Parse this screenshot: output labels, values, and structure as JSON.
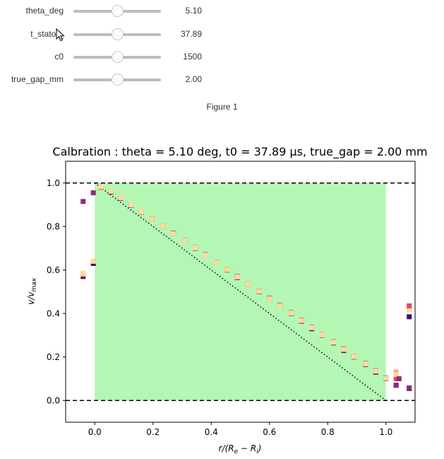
{
  "sliders": [
    {
      "id": "theta",
      "label": "theta_deg",
      "value_text": "5.10",
      "fraction": 0.5
    },
    {
      "id": "tstator",
      "label": "t_stator_",
      "value_text": "37.89",
      "fraction": 0.5
    },
    {
      "id": "c0",
      "label": "c0",
      "value_text": "1500",
      "fraction": 0.5
    },
    {
      "id": "truegap",
      "label": "true_gap_mm",
      "value_text": "2.00",
      "fraction": 0.5
    }
  ],
  "figure_label": "Figure 1",
  "chart_data": {
    "type": "scatter",
    "title": "Calbration : theta = 5.10 deg, t0 = 37.89 µs, true_gap = 2.00 mm",
    "xlabel": "r/(R_e − R_i)",
    "ylabel": "v/v_max",
    "xlim": [
      -0.1,
      1.1
    ],
    "ylim": [
      -0.1,
      1.1
    ],
    "xticks": [
      0.0,
      0.2,
      0.4,
      0.6,
      0.8,
      1.0
    ],
    "yticks": [
      0.0,
      0.2,
      0.4,
      0.6,
      0.8,
      1.0
    ],
    "xtick_labels": [
      "0.0",
      "0.2",
      "0.4",
      "0.6",
      "0.8",
      "1.0"
    ],
    "ytick_labels": [
      "0.0",
      "0.2",
      "0.4",
      "0.6",
      "0.8",
      "1.0"
    ],
    "shaded_region": {
      "x": [
        0.0,
        1.0
      ],
      "y": [
        0.0,
        1.0
      ],
      "color": "#b4f7b4"
    },
    "hlines": [
      {
        "y": 0.0,
        "style": "dashed",
        "color": "#000000"
      },
      {
        "y": 1.0,
        "style": "dashed",
        "color": "#000000"
      }
    ],
    "reference_line": {
      "x": [
        0.0,
        1.0
      ],
      "y": [
        1.0,
        0.0
      ],
      "style": "dotted",
      "color": "#000000"
    },
    "grid": false,
    "colors": [
      "#3b0f70",
      "#8c2981",
      "#de4968",
      "#fe9f6d",
      "#fcdd9c"
    ],
    "series": [
      {
        "color": "#3b0f70",
        "x": [
          -0.04,
          -0.005,
          0.02,
          0.055,
          0.09,
          0.125,
          0.16,
          0.195,
          0.235,
          0.27,
          0.31,
          0.345,
          0.38,
          0.42,
          0.455,
          0.49,
          0.525,
          0.565,
          0.6,
          0.635,
          0.675,
          0.71,
          0.745,
          0.78,
          0.82,
          0.855,
          0.89,
          0.93,
          0.965,
          1.0,
          1.035,
          1.08
        ],
        "y": [
          0.57,
          0.63,
          0.98,
          0.96,
          0.93,
          0.9,
          0.865,
          0.835,
          0.8,
          0.77,
          0.735,
          0.7,
          0.67,
          0.635,
          0.6,
          0.565,
          0.535,
          0.5,
          0.47,
          0.435,
          0.4,
          0.365,
          0.33,
          0.3,
          0.265,
          0.23,
          0.2,
          0.165,
          0.13,
          0.1,
          0.07,
          0.055
        ]
      },
      {
        "color": "#8c2981",
        "x": [
          -0.04,
          -0.005,
          0.02,
          0.055,
          0.09,
          0.125,
          0.16,
          0.195,
          0.235,
          0.27,
          0.31,
          0.345,
          0.38,
          0.42,
          0.455,
          0.49,
          0.525,
          0.565,
          0.6,
          0.635,
          0.675,
          0.71,
          0.745,
          0.78,
          0.82,
          0.855,
          0.89,
          0.93,
          0.965,
          1.0,
          1.035,
          1.08
        ],
        "y": [
          0.915,
          0.955,
          0.985,
          0.958,
          0.93,
          0.898,
          0.865,
          0.834,
          0.8,
          0.768,
          0.736,
          0.703,
          0.67,
          0.636,
          0.603,
          0.57,
          0.536,
          0.503,
          0.47,
          0.437,
          0.404,
          0.37,
          0.337,
          0.303,
          0.27,
          0.237,
          0.203,
          0.17,
          0.137,
          0.104,
          0.07,
          0.058
        ]
      },
      {
        "color": "#de4968",
        "x": [
          -0.04,
          -0.005,
          0.02,
          0.055,
          0.09,
          0.125,
          0.16,
          0.195,
          0.235,
          0.27,
          0.31,
          0.345,
          0.38,
          0.42,
          0.455,
          0.49,
          0.525,
          0.565,
          0.6,
          0.635,
          0.675,
          0.71,
          0.745,
          0.78,
          0.82,
          0.855,
          0.89,
          0.93,
          0.965,
          1.0,
          1.035,
          1.08
        ],
        "y": [
          0.58,
          0.64,
          0.98,
          0.962,
          0.932,
          0.9,
          0.866,
          0.834,
          0.8,
          0.768,
          0.735,
          0.702,
          0.668,
          0.635,
          0.602,
          0.568,
          0.535,
          0.502,
          0.468,
          0.435,
          0.402,
          0.368,
          0.335,
          0.302,
          0.268,
          0.235,
          0.202,
          0.168,
          0.135,
          0.102,
          0.1,
          0.43
        ]
      },
      {
        "color": "#fe9f6d",
        "x": [
          -0.04,
          -0.005,
          0.02,
          0.055,
          0.09,
          0.125,
          0.16,
          0.195,
          0.235,
          0.27,
          0.31,
          0.345,
          0.38,
          0.42,
          0.455,
          0.49,
          0.525,
          0.565,
          0.6,
          0.635,
          0.675,
          0.71,
          0.745,
          0.78,
          0.82,
          0.855,
          0.89,
          0.93,
          0.965,
          1.0,
          1.035,
          1.08
        ],
        "y": [
          0.58,
          0.64,
          0.982,
          0.962,
          0.932,
          0.9,
          0.866,
          0.834,
          0.8,
          0.768,
          0.735,
          0.702,
          0.668,
          0.635,
          0.602,
          0.568,
          0.535,
          0.502,
          0.468,
          0.435,
          0.402,
          0.368,
          0.335,
          0.302,
          0.268,
          0.235,
          0.202,
          0.168,
          0.135,
          0.102,
          0.13,
          0.42
        ]
      },
      {
        "color": "#fcdd9c",
        "x": [
          -0.04,
          -0.005,
          0.02,
          0.055,
          0.09,
          0.125,
          0.16,
          0.195,
          0.235,
          0.27,
          0.31,
          0.345,
          0.38,
          0.42,
          0.455,
          0.49,
          0.525,
          0.565,
          0.6,
          0.635,
          0.675,
          0.71,
          0.745,
          0.78,
          0.82,
          0.855,
          0.89,
          0.93,
          0.965,
          1.0,
          1.035,
          1.08
        ],
        "y": [
          0.585,
          0.64,
          0.984,
          0.963,
          0.933,
          0.9,
          0.866,
          0.834,
          0.8,
          0.768,
          0.735,
          0.702,
          0.668,
          0.635,
          0.602,
          0.568,
          0.535,
          0.502,
          0.468,
          0.435,
          0.402,
          0.368,
          0.335,
          0.302,
          0.268,
          0.235,
          0.202,
          0.168,
          0.135,
          0.102,
          0.12,
          0.415
        ]
      },
      {
        "color": "#3b0f70",
        "x": [
          1.08
        ],
        "y": [
          0.385
        ]
      },
      {
        "color": "#de4968",
        "x": [
          1.08
        ],
        "y": [
          0.435
        ]
      },
      {
        "color": "#8c2981",
        "x": [
          1.045
        ],
        "y": [
          0.1
        ]
      }
    ]
  }
}
